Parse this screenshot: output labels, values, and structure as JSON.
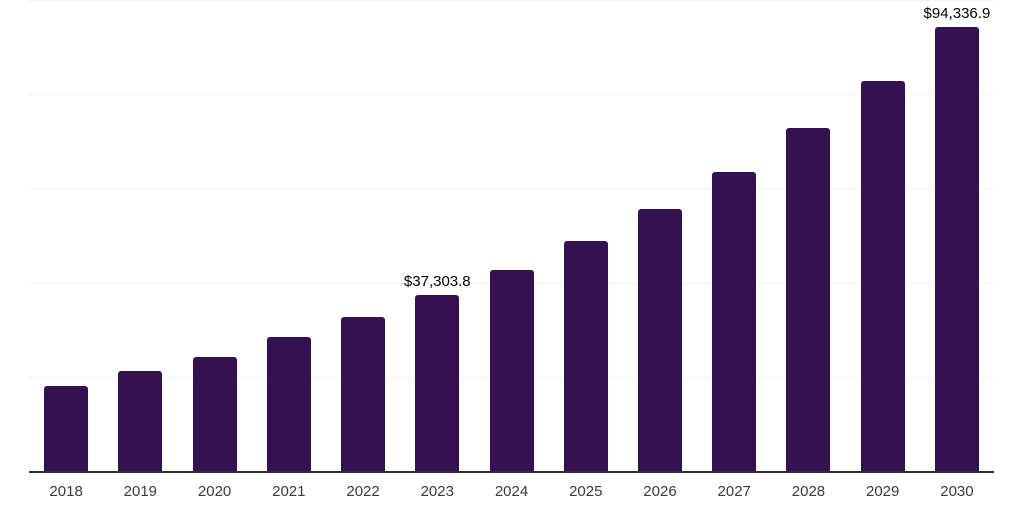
{
  "chart_data": {
    "type": "bar",
    "title": "",
    "xlabel": "",
    "ylabel": "",
    "categories": [
      "2018",
      "2019",
      "2020",
      "2021",
      "2022",
      "2023",
      "2024",
      "2025",
      "2026",
      "2027",
      "2028",
      "2029",
      "2030"
    ],
    "values": [
      18100,
      21300,
      24200,
      28450,
      32700,
      37303.8,
      42700,
      48850,
      55600,
      63550,
      72750,
      82800,
      94336.9
    ],
    "data_labels": {
      "2023": "$37,303.8",
      "2030": "$94,336.9"
    },
    "ylim": [
      0,
      100000
    ],
    "gridline_values": [
      20000,
      40000,
      60000,
      80000,
      100000
    ],
    "grid": "horizontal",
    "legend": "none",
    "colors": {
      "bar": "#361151",
      "axis_line": "#2e2e2e",
      "gridline": "#f2f2f2",
      "data_label": "#000000",
      "tick_label": "#3a3a3a",
      "background": "#ffffff"
    }
  }
}
